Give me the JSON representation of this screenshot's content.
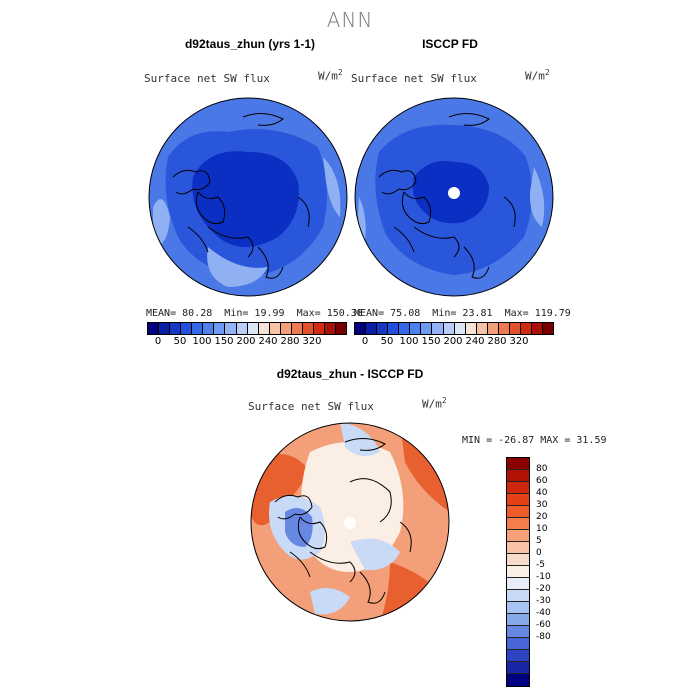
{
  "main_title": "ANN",
  "panels": [
    {
      "title": "d92taus_zhun (yrs 1-1)",
      "variable": "Surface net SW flux",
      "units": "W/m",
      "units_exp": "2",
      "mean_label": "MEAN=",
      "mean": "80.28",
      "min_label": "Min=",
      "min": "19.99",
      "max_label": "Max=",
      "max": "150.38"
    },
    {
      "title": "ISCCP FD",
      "variable": "Surface net SW flux",
      "units": "W/m",
      "units_exp": "2",
      "mean_label": "MEAN=",
      "mean": "75.08",
      "min_label": "Min=",
      "min": "23.81",
      "max_label": "Max=",
      "max": "119.79"
    }
  ],
  "abs_colorbar": {
    "colors": [
      "#00007f",
      "#0a1fa3",
      "#1537c4",
      "#2050dc",
      "#3568e6",
      "#4f81ee",
      "#6d9af3",
      "#92b4f6",
      "#b9cdf6",
      "#dde6f6",
      "#f7e3d5",
      "#f5c4a6",
      "#f3a07a",
      "#ee7a52",
      "#e4522c",
      "#cf2c12",
      "#a8110a",
      "#7a0000"
    ],
    "labels": [
      "0",
      "50",
      "100",
      "150",
      "200",
      "240",
      "280",
      "320"
    ]
  },
  "diff_panel": {
    "title": "d92taus_zhun - ISCCP FD",
    "variable": "Surface net SW flux",
    "units": "W/m",
    "units_exp": "2",
    "stats": "MIN = -26.87 MAX =  31.59"
  },
  "diff_colorbar": {
    "colors": [
      "#8b0000",
      "#b01206",
      "#d0270c",
      "#e64016",
      "#f05b2a",
      "#f47d4b",
      "#f6a07a",
      "#f8c2a6",
      "#f8dccb",
      "#fbeee4",
      "#e7eefa",
      "#c9daf6",
      "#a8c3f2",
      "#86a9ec",
      "#6688e3",
      "#4866d6",
      "#2d44c2",
      "#1826a6",
      "#000080"
    ],
    "labels": [
      "80",
      "60",
      "40",
      "30",
      "20",
      "10",
      "5",
      "0",
      "-5",
      "-10",
      "-20",
      "-30",
      "-40",
      "-60",
      "-80"
    ]
  },
  "map_colors": {
    "deep_blue": "#0a2fc2",
    "mid_blue": "#2a56db",
    "light_blue": "#4a78e6",
    "pale_blue": "#8fb0f2",
    "diff_pale": "#fbeee4",
    "diff_orange": "#f3a07a",
    "diff_red": "#e8602f",
    "diff_lightblue": "#c9daf6",
    "diff_blue": "#6688e3"
  }
}
